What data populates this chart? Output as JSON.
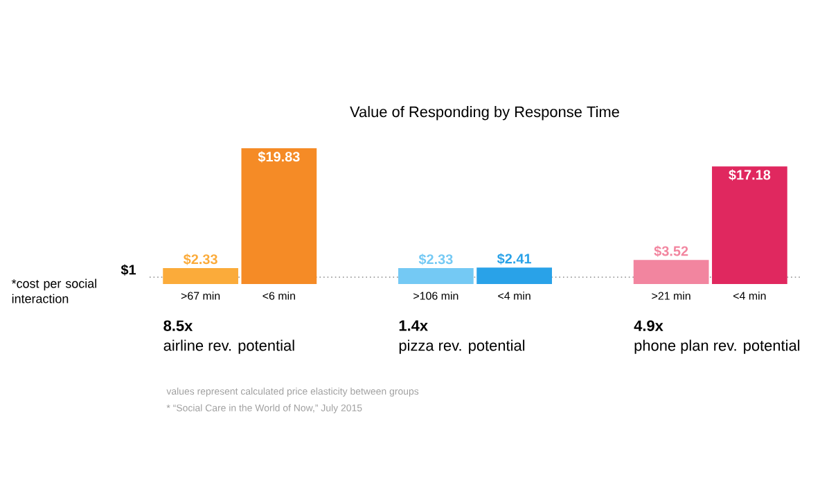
{
  "chart_data": {
    "type": "bar",
    "title": "Value of Responding by Response Time",
    "categories": [
      ">67 min",
      "<6 min",
      null,
      ">106 min",
      "<4 min",
      null,
      ">21 min",
      "<4 min"
    ],
    "values": [
      2.33,
      19.83,
      null,
      2.33,
      2.41,
      null,
      3.52,
      17.18
    ],
    "colors": [
      "#fbab3a",
      "#f58b26",
      "#ffffff",
      "#74c9f4",
      "#29a2e8",
      "#ffffff",
      "#f2859f",
      "#e0285f"
    ],
    "value_labels": [
      "$2.33",
      "$19.83",
      null,
      "$2.33",
      "$2.41",
      null,
      "$3.52",
      "$17.18"
    ],
    "ref_lines": [
      {
        "axis": "y",
        "value": 1,
        "label": "$1",
        "color": "#9a9a9a",
        "line_style": "dotted"
      }
    ],
    "annotations": [
      "8.5x",
      "airline rev. potential",
      "1.4x",
      "pizza rev. potential",
      "4.9x",
      "phone plan rev. potential",
      "*cost per social interaction",
      "values represent calculated price elasticity between groups",
      "* “Social Care in the World of Now,” July 2015"
    ],
    "data_labels": false
  }
}
